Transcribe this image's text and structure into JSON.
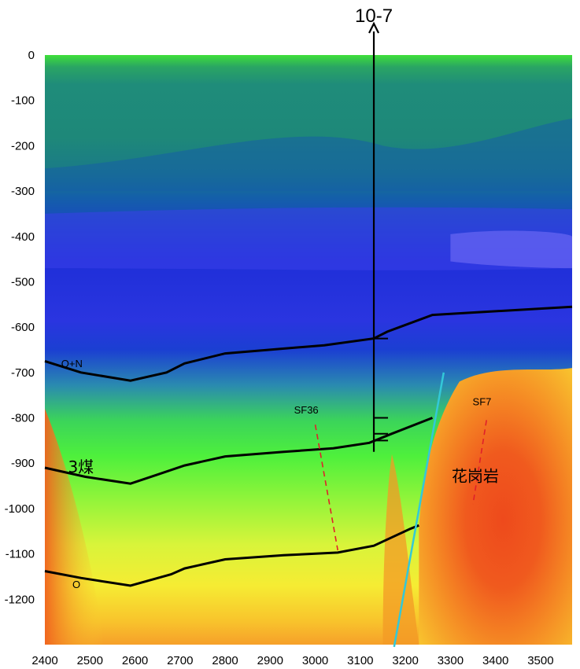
{
  "chart_data": {
    "type": "heatmap",
    "title": "",
    "xlabel": "",
    "ylabel": "",
    "xlim": [
      2400,
      3570
    ],
    "ylim": [
      -1300,
      0
    ],
    "x_ticks": [
      "2400",
      "2500",
      "2600",
      "2700",
      "2800",
      "2900",
      "3000",
      "3100",
      "3200",
      "3300",
      "3400",
      "3500"
    ],
    "y_ticks": [
      "0",
      "-100",
      "-200",
      "-300",
      "-400",
      "-500",
      "-600",
      "-700",
      "-800",
      "-900",
      "-1000",
      "-1100",
      "-1200"
    ],
    "x_tick_values": [
      2400,
      2500,
      2600,
      2700,
      2800,
      2900,
      3000,
      3100,
      3200,
      3300,
      3400,
      3500
    ],
    "y_tick_values": [
      0,
      -100,
      -200,
      -300,
      -400,
      -500,
      -600,
      -700,
      -800,
      -900,
      -1000,
      -1100,
      -1200
    ],
    "color_scale": [
      "#2e8b57",
      "#0d5fa8",
      "#1a2fd6",
      "#4b4ef0",
      "#5fe04a",
      "#c6f23a",
      "#f4f235",
      "#f7b02a",
      "#f2561c"
    ],
    "horizons": [
      {
        "label": "Q+N",
        "points": [
          [
            2400,
            -675
          ],
          [
            2480,
            -700
          ],
          [
            2590,
            -718
          ],
          [
            2670,
            -700
          ],
          [
            2710,
            -680
          ],
          [
            2800,
            -658
          ],
          [
            3020,
            -640
          ],
          [
            3130,
            -625
          ],
          [
            3160,
            -610
          ],
          [
            3260,
            -573
          ],
          [
            3570,
            -555
          ]
        ]
      },
      {
        "label": "3煤",
        "points": [
          [
            2400,
            -910
          ],
          [
            2490,
            -930
          ],
          [
            2590,
            -945
          ],
          [
            2650,
            -925
          ],
          [
            2710,
            -905
          ],
          [
            2800,
            -885
          ],
          [
            2930,
            -875
          ],
          [
            3040,
            -867
          ],
          [
            3120,
            -855
          ],
          [
            3170,
            -835
          ],
          [
            3260,
            -800
          ]
        ]
      },
      {
        "label": "O",
        "points": [
          [
            2400,
            -1138
          ],
          [
            2480,
            -1153
          ],
          [
            2590,
            -1170
          ],
          [
            2680,
            -1145
          ],
          [
            2710,
            -1132
          ],
          [
            2800,
            -1112
          ],
          [
            2930,
            -1103
          ],
          [
            3050,
            -1097
          ],
          [
            3130,
            -1082
          ],
          [
            3210,
            -1045
          ],
          [
            3230,
            -1037
          ]
        ]
      }
    ],
    "faults": [
      {
        "label": "SF36",
        "points": [
          [
            3000,
            -815
          ],
          [
            3050,
            -1092
          ]
        ],
        "color": "#e0202a",
        "dashed": true
      },
      {
        "label": "SF7",
        "points": [
          [
            3380,
            -805
          ],
          [
            3350,
            -990
          ]
        ],
        "color": "#e0202a",
        "dashed": true
      },
      {
        "label": "",
        "points": [
          [
            3285,
            -700
          ],
          [
            3175,
            -1305
          ]
        ],
        "color": "#33c8d8",
        "dashed": false
      }
    ],
    "borehole": {
      "label": "10-7",
      "x": 3130,
      "top": 60,
      "bottom": -875,
      "marks": [
        -625,
        -800,
        -835,
        -850
      ]
    },
    "annotations": [
      {
        "text": "Q+N",
        "x": 2460,
        "y": -688
      },
      {
        "text": "3煤",
        "x": 2480,
        "y": -920
      },
      {
        "text": "O",
        "x": 2470,
        "y": -1175
      },
      {
        "text": "SF36",
        "x": 2980,
        "y": -790
      },
      {
        "text": "SF7",
        "x": 3370,
        "y": -772
      },
      {
        "text": "花岗岩",
        "x": 3355,
        "y": -940
      }
    ]
  }
}
